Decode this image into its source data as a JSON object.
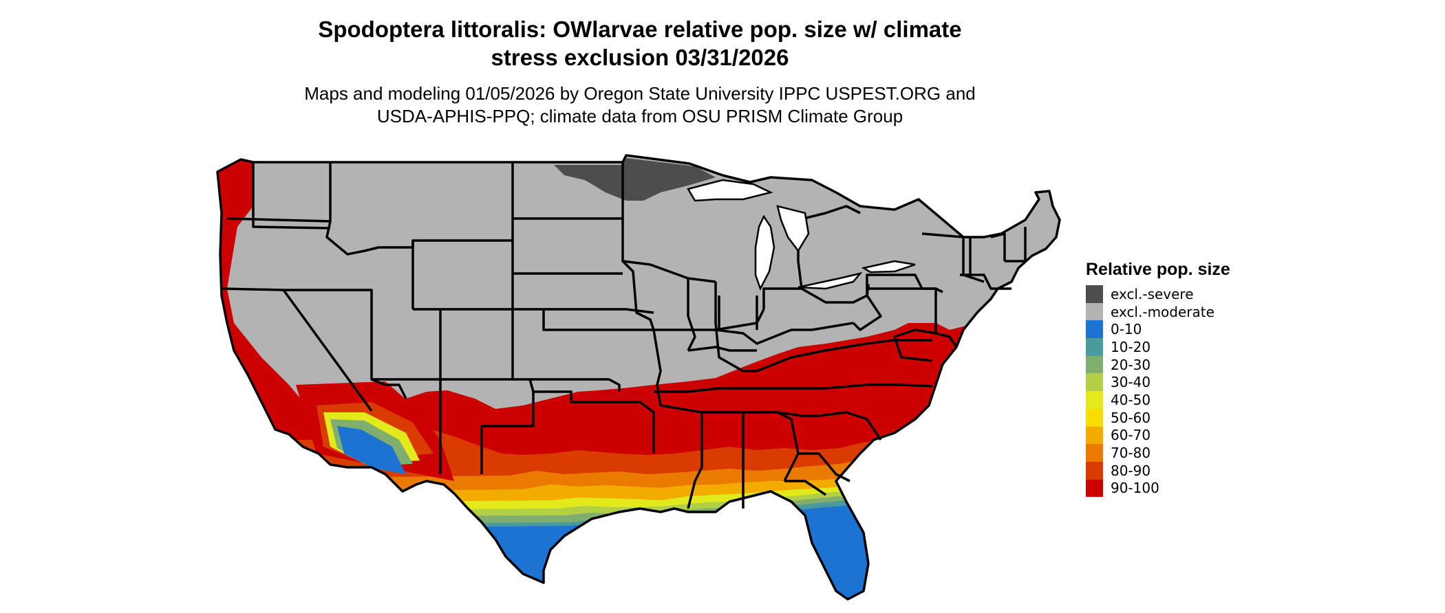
{
  "title_line1": "Spodoptera littoralis: OWlarvae relative pop. size w/ climate",
  "title_line2": "stress exclusion 03/31/2026",
  "subtitle_line1": "Maps and modeling 01/05/2026 by Oregon State University IPPC USPEST.ORG and",
  "subtitle_line2": "USDA-APHIS-PPQ; climate data from OSU PRISM Climate Group",
  "legend": {
    "title": "Relative pop. size",
    "items": [
      {
        "label": "excl.-severe",
        "color": "#4d4d4d"
      },
      {
        "label": "excl.-moderate",
        "color": "#b3b3b3"
      },
      {
        "label": "0-10",
        "color": "#1c73d2"
      },
      {
        "label": "10-20",
        "color": "#4a9a9e"
      },
      {
        "label": "20-30",
        "color": "#7fae6e"
      },
      {
        "label": "30-40",
        "color": "#b2cf46"
      },
      {
        "label": "40-50",
        "color": "#e2ea1c"
      },
      {
        "label": "50-60",
        "color": "#f7dd00"
      },
      {
        "label": "60-70",
        "color": "#f2ac00"
      },
      {
        "label": "70-80",
        "color": "#ea7a00"
      },
      {
        "label": "80-90",
        "color": "#da3b00"
      },
      {
        "label": "90-100",
        "color": "#cc0000"
      }
    ]
  }
}
